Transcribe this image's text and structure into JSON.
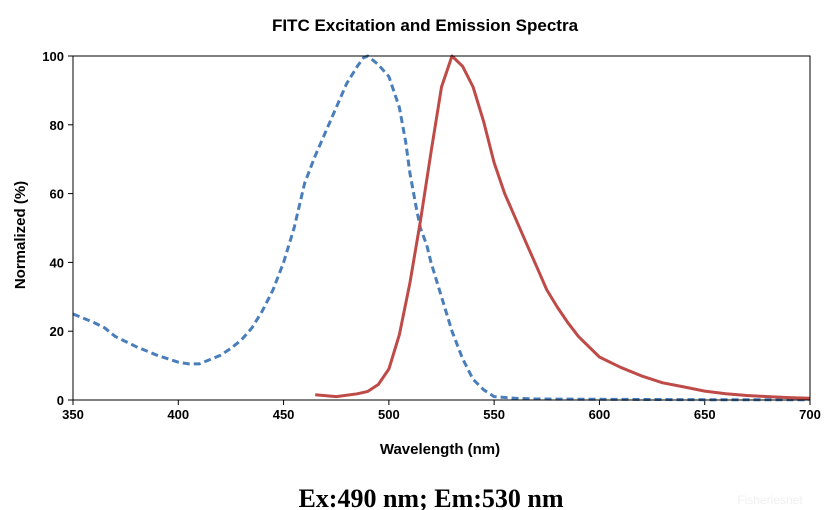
{
  "chart_data": {
    "type": "line",
    "title": "FITC Excitation and Emission Spectra",
    "xlabel": "Wavelength (nm)",
    "ylabel": "Normalized (%)",
    "xlim": [
      350,
      700
    ],
    "ylim": [
      0,
      100
    ],
    "xticks": [
      "350",
      "400",
      "450",
      "500",
      "550",
      "600",
      "650",
      "700"
    ],
    "yticks": [
      "0",
      "20",
      "40",
      "60",
      "80",
      "100"
    ],
    "grid": false,
    "legend": "none",
    "series": [
      {
        "style": "dashed",
        "color": "#4a7ebb",
        "x": [
          350,
          360,
          365,
          370,
          380,
          390,
          400,
          405,
          410,
          420,
          425,
          430,
          435,
          440,
          445,
          450,
          455,
          460,
          465,
          470,
          475,
          480,
          485,
          488,
          490,
          495,
          500,
          505,
          508,
          510,
          513,
          515,
          518,
          520,
          525,
          530,
          535,
          540,
          545,
          550,
          560,
          570,
          600,
          650,
          700
        ],
        "y": [
          25,
          22.5,
          21,
          18.5,
          15.5,
          13,
          11,
          10.5,
          10.5,
          13,
          15,
          17.5,
          21,
          26,
          32,
          40,
          50,
          63,
          71,
          78,
          85,
          92,
          97,
          99.5,
          100,
          97.5,
          94,
          85,
          75,
          66,
          56,
          50,
          45,
          40,
          30,
          20,
          12,
          6,
          3,
          1,
          0.5,
          0.3,
          0.2,
          0.1,
          0.1
        ]
      },
      {
        "style": "solid",
        "color": "#be4b48",
        "x": [
          465,
          475,
          485,
          490,
          495,
          500,
          505,
          510,
          515,
          520,
          525,
          530,
          535,
          540,
          545,
          550,
          555,
          560,
          565,
          570,
          575,
          580,
          585,
          590,
          600,
          610,
          620,
          630,
          640,
          650,
          660,
          670,
          680,
          690,
          700
        ],
        "y": [
          1.5,
          1,
          1.8,
          2.5,
          4.5,
          9,
          19,
          34,
          52,
          72,
          91,
          100,
          97,
          91,
          81,
          69,
          60,
          53,
          46,
          39,
          32,
          27,
          22.5,
          18.5,
          12.5,
          9.5,
          7,
          5,
          3.8,
          2.6,
          1.8,
          1.3,
          1,
          0.7,
          0.5
        ]
      }
    ]
  },
  "caption": "Ex:490 nm; Em:530 nm",
  "watermark": "Fisheriesnet"
}
